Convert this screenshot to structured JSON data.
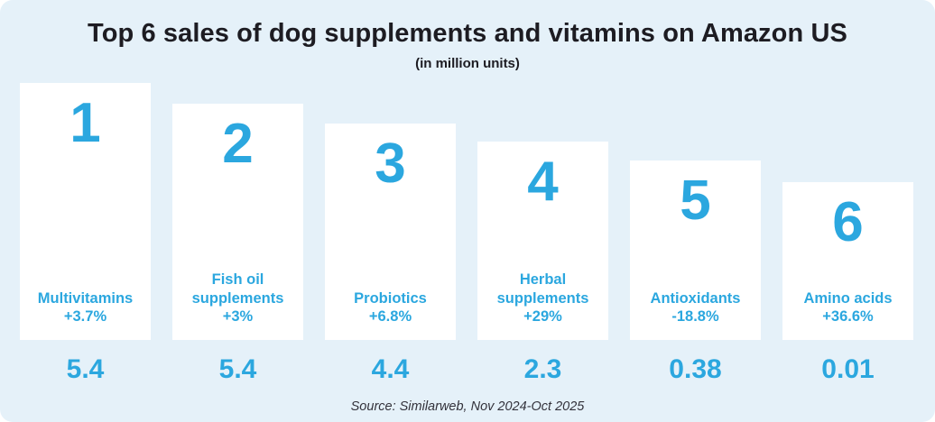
{
  "header": {
    "title": "Top 6 sales of dog supplements and vitamins on Amazon US",
    "subtitle": "(in million units)"
  },
  "cards": [
    {
      "rank": "1",
      "label": "Multivitamins",
      "change": "+3.7%",
      "value": "5.4"
    },
    {
      "rank": "2",
      "label": "Fish oil supplements",
      "change": "+3%",
      "value": "5.4"
    },
    {
      "rank": "3",
      "label": "Probiotics",
      "change": "+6.8%",
      "value": "4.4"
    },
    {
      "rank": "4",
      "label": "Herbal supplements",
      "change": "+29%",
      "value": "2.3"
    },
    {
      "rank": "5",
      "label": "Antioxidants",
      "change": "-18.8%",
      "value": "0.38"
    },
    {
      "rank": "6",
      "label": "Amino acids",
      "change": "+36.6%",
      "value": "0.01"
    }
  ],
  "footer": {
    "source": "Source: Similarweb, Nov 2024-Oct 2025"
  },
  "colors": {
    "panel_background": "#e5f1f9",
    "card_background": "#ffffff",
    "accent_blue": "#2ba7df",
    "title_text": "#1d1c22",
    "source_text": "#33323b"
  },
  "chart_data": {
    "type": "bar",
    "title": "Top 6 sales of dog supplements and vitamins on Amazon US",
    "subtitle": "(in million units)",
    "categories": [
      "Multivitamins",
      "Fish oil supplements",
      "Probiotics",
      "Herbal supplements",
      "Antioxidants",
      "Amino acids"
    ],
    "values": [
      5.4,
      5.4,
      4.4,
      2.3,
      0.38,
      0.01
    ],
    "ranks": [
      1,
      2,
      3,
      4,
      5,
      6
    ],
    "change_vs_prior_period": [
      "+3.7%",
      "+3%",
      "+6.8%",
      "+29%",
      "-18.8%",
      "+36.6%"
    ],
    "unit": "million units",
    "source": "Source: Similarweb, Nov 2024-Oct 2025",
    "legend": false,
    "grid": false,
    "layout_note": "stylized ranking cards of decreasing height, values printed below each card"
  }
}
